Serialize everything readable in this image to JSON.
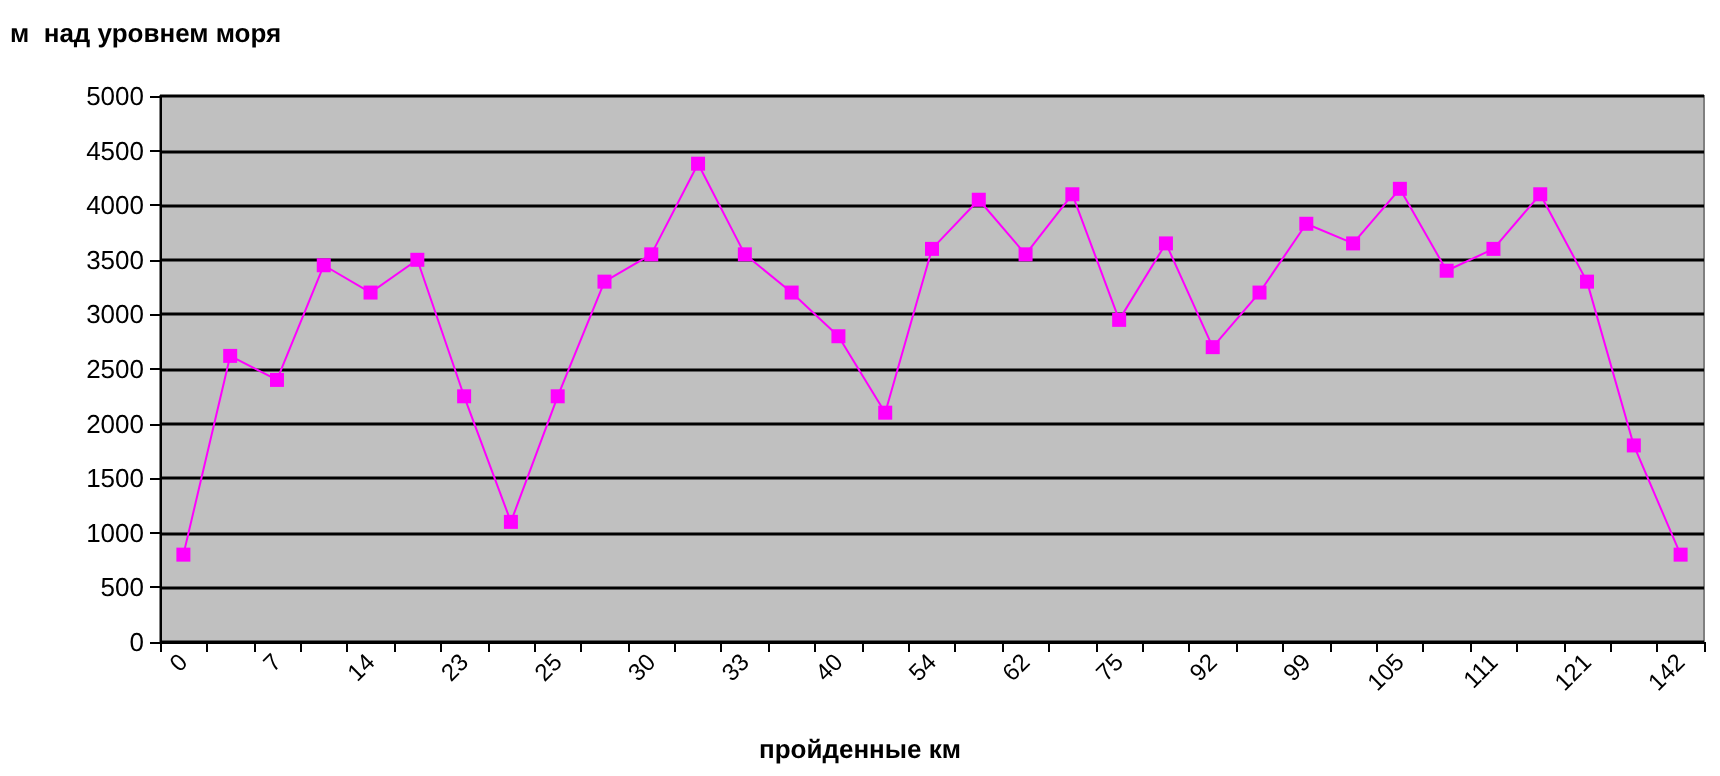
{
  "chart_data": {
    "type": "line",
    "ylabel": "м  над уровнем моря",
    "xlabel": "пройденные км",
    "categories": [
      "0",
      null,
      "7",
      null,
      "14",
      null,
      "23",
      null,
      "25",
      null,
      "30",
      null,
      "33",
      null,
      "40",
      null,
      "54",
      null,
      "62",
      null,
      "75",
      null,
      "92",
      null,
      "99",
      null,
      "105",
      null,
      "111",
      null,
      "121",
      null,
      "142"
    ],
    "series": [
      {
        "color": "#ff00ff",
        "values": [
          800,
          2620,
          2400,
          3450,
          3200,
          3500,
          2250,
          1100,
          2250,
          3300,
          3550,
          4380,
          3550,
          3200,
          2800,
          2100,
          3600,
          4050,
          3550,
          4100,
          2950,
          3650,
          2700,
          3200,
          3830,
          3650,
          4150,
          3400,
          3600,
          4100,
          3300,
          1800,
          800
        ]
      }
    ],
    "ylim": [
      0,
      5000
    ],
    "yticks": [
      0,
      500,
      1000,
      1500,
      2000,
      2500,
      3000,
      3500,
      4000,
      4500,
      5000
    ],
    "grid": "y",
    "marker": "square",
    "line_style": "solid"
  }
}
